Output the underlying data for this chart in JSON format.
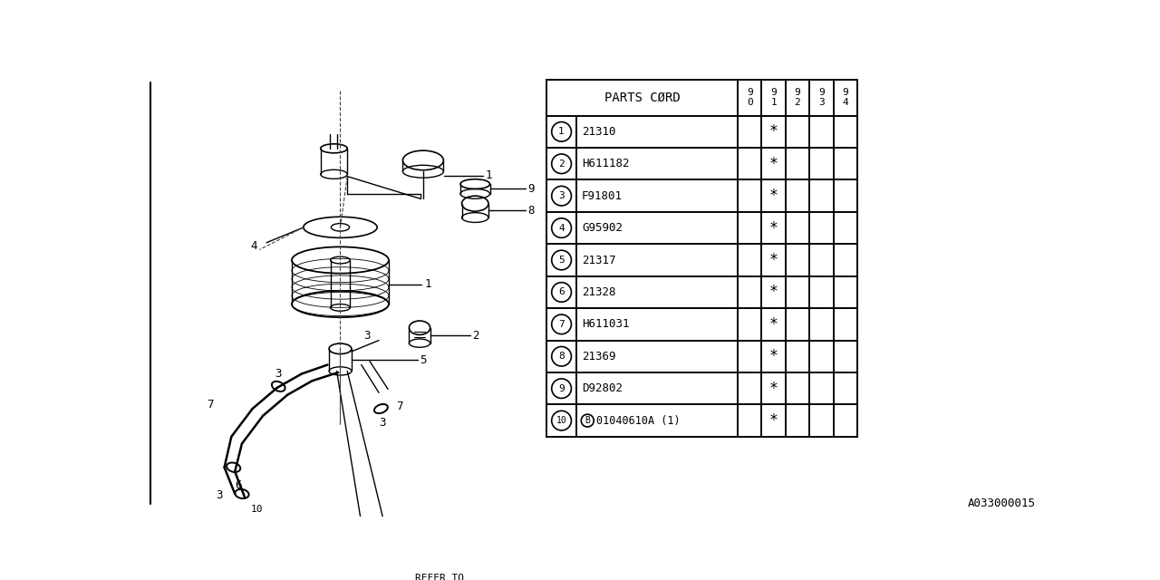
{
  "bg_color": "#ffffff",
  "header_label": "PARTS CØRD",
  "col_headers": [
    "9\n0",
    "9\n1",
    "9\n2",
    "9\n3",
    "9\n4"
  ],
  "rows": [
    {
      "num": "1",
      "code": "21310",
      "marks": [
        0,
        1,
        0,
        0,
        0
      ]
    },
    {
      "num": "2",
      "code": "H611182",
      "marks": [
        0,
        1,
        0,
        0,
        0
      ]
    },
    {
      "num": "3",
      "code": "F91801",
      "marks": [
        0,
        1,
        0,
        0,
        0
      ]
    },
    {
      "num": "4",
      "code": "G95902",
      "marks": [
        0,
        1,
        0,
        0,
        0
      ]
    },
    {
      "num": "5",
      "code": "21317",
      "marks": [
        0,
        1,
        0,
        0,
        0
      ]
    },
    {
      "num": "6",
      "code": "21328",
      "marks": [
        0,
        1,
        0,
        0,
        0
      ]
    },
    {
      "num": "7",
      "code": "H611031",
      "marks": [
        0,
        1,
        0,
        0,
        0
      ]
    },
    {
      "num": "8",
      "code": "21369",
      "marks": [
        0,
        1,
        0,
        0,
        0
      ]
    },
    {
      "num": "9",
      "code": "D92802",
      "marks": [
        0,
        1,
        0,
        0,
        0
      ]
    },
    {
      "num": "10",
      "code": "01040610A (1)",
      "marks": [
        0,
        1,
        0,
        0,
        0
      ]
    }
  ],
  "diagram_label": "A033000015",
  "line_color": "#000000",
  "text_color": "#000000"
}
